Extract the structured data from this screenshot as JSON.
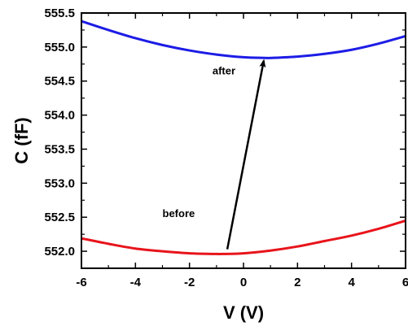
{
  "chart_data": {
    "type": "line",
    "xlabel": "V (V)",
    "ylabel": "C (fF)",
    "xlim": [
      -6,
      6
    ],
    "ylim": [
      551.75,
      555.5
    ],
    "x_ticks": [
      -6,
      -4,
      -2,
      0,
      2,
      4,
      6
    ],
    "y_ticks": [
      552.0,
      552.5,
      553.0,
      553.5,
      554.0,
      554.5,
      555.0,
      555.5
    ],
    "x_tick_labels": [
      "-6",
      "-4",
      "-2",
      "0",
      "2",
      "4",
      "6"
    ],
    "y_tick_labels": [
      "552.0",
      "552.5",
      "553.0",
      "553.5",
      "554.0",
      "554.5",
      "555.0",
      "555.5"
    ],
    "grid": false,
    "series": [
      {
        "color": "#e8141b",
        "x": [
          -6,
          -5,
          -4,
          -3,
          -2,
          -1,
          -0.8,
          0,
          1,
          2,
          3,
          4,
          5,
          6
        ],
        "y": [
          552.19,
          552.11,
          552.04,
          552.0,
          551.97,
          551.96,
          551.96,
          551.97,
          552.01,
          552.07,
          552.15,
          552.23,
          552.33,
          552.45
        ]
      },
      {
        "color": "#1c1ce6",
        "x": [
          -6,
          -5,
          -4,
          -3,
          -2,
          -1,
          0,
          0.8,
          1,
          2,
          3,
          4,
          5,
          6
        ],
        "y": [
          555.38,
          555.25,
          555.13,
          555.03,
          554.95,
          554.89,
          554.85,
          554.84,
          554.84,
          554.86,
          554.9,
          554.96,
          555.05,
          555.16
        ]
      }
    ],
    "annotations": [
      {
        "text": "after",
        "x": -1.15,
        "y": 554.6
      },
      {
        "text": "before",
        "x": -3.0,
        "y": 552.5
      }
    ],
    "arrow": {
      "from": [
        -0.6,
        552.03
      ],
      "to": [
        0.75,
        554.8
      ],
      "color": "#000000"
    }
  }
}
